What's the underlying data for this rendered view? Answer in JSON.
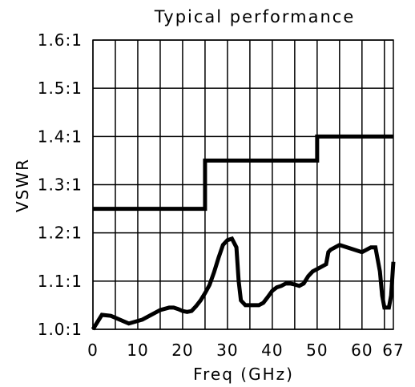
{
  "chart_data": {
    "type": "line",
    "title": "Typical performance",
    "xlabel": "Freq (GHz)",
    "ylabel": "VSWR",
    "xlim": [
      0,
      67
    ],
    "ylim": [
      1.0,
      1.6
    ],
    "grid": true,
    "x_ticks": [
      {
        "value": 0,
        "label": "0"
      },
      {
        "value": 10,
        "label": "10"
      },
      {
        "value": 20,
        "label": "20"
      },
      {
        "value": 30,
        "label": "30"
      },
      {
        "value": 40,
        "label": "40"
      },
      {
        "value": 50,
        "label": "50"
      },
      {
        "value": 60,
        "label": "60"
      },
      {
        "value": 67,
        "label": "67"
      }
    ],
    "y_ticks": [
      {
        "value": 1.0,
        "label": "1.0:1"
      },
      {
        "value": 1.1,
        "label": "1.1:1"
      },
      {
        "value": 1.2,
        "label": "1.2:1"
      },
      {
        "value": 1.3,
        "label": "1.3:1"
      },
      {
        "value": 1.4,
        "label": "1.4:1"
      },
      {
        "value": 1.5,
        "label": "1.5:1"
      },
      {
        "value": 1.6,
        "label": "1.6:1"
      }
    ],
    "series": [
      {
        "color": "#000000",
        "x": [
          0,
          25,
          25,
          50,
          50,
          67
        ],
        "y": [
          1.25,
          1.25,
          1.35,
          1.35,
          1.4,
          1.4
        ]
      },
      {
        "color": "#000000",
        "x": [
          0,
          2,
          4,
          8,
          11,
          12,
          15,
          17,
          18,
          19,
          20,
          21,
          22,
          23,
          24,
          25,
          26,
          27,
          28,
          29,
          30,
          31,
          32,
          32.5,
          33,
          34,
          35,
          36,
          37,
          38,
          39,
          40,
          41,
          42,
          43,
          44,
          45,
          46,
          47,
          48,
          49,
          50,
          51,
          52,
          52.5,
          53,
          54,
          55,
          60,
          61,
          62,
          63,
          64,
          64.5,
          65,
          66,
          66.5,
          67
        ],
        "y": [
          1.0,
          1.03,
          1.028,
          1.012,
          1.02,
          1.025,
          1.04,
          1.045,
          1.045,
          1.042,
          1.038,
          1.036,
          1.038,
          1.048,
          1.06,
          1.075,
          1.092,
          1.118,
          1.148,
          1.175,
          1.185,
          1.188,
          1.17,
          1.1,
          1.06,
          1.05,
          1.05,
          1.05,
          1.05,
          1.055,
          1.067,
          1.08,
          1.087,
          1.09,
          1.095,
          1.095,
          1.093,
          1.09,
          1.095,
          1.11,
          1.12,
          1.125,
          1.13,
          1.135,
          1.16,
          1.165,
          1.17,
          1.175,
          1.16,
          1.165,
          1.17,
          1.17,
          1.12,
          1.07,
          1.045,
          1.045,
          1.07,
          1.14
        ]
      }
    ]
  }
}
